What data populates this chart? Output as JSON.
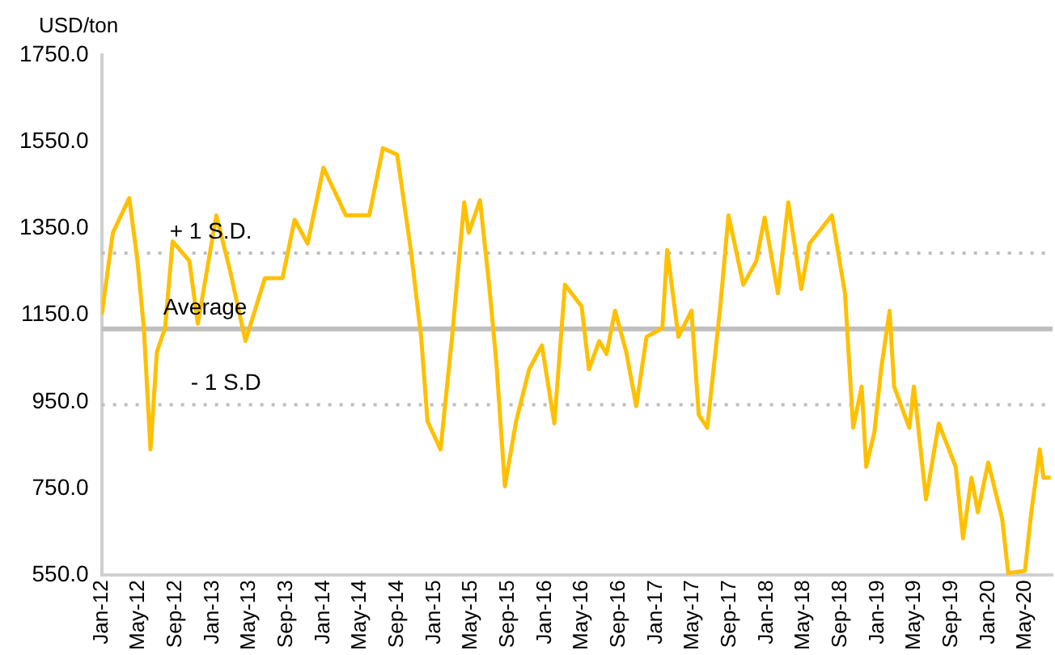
{
  "chart_data": {
    "type": "line",
    "ylabel": "USD/ton",
    "x": [
      "2012-01-01",
      "2012-02-07",
      "2012-04-01",
      "2012-04-28",
      "2012-05-19",
      "2012-06-10",
      "2012-07-01",
      "2012-07-28",
      "2012-08-22",
      "2012-10-16",
      "2012-11-13",
      "2013-01-13",
      "2013-02-28",
      "2013-04-19",
      "2013-06-22",
      "2013-08-19",
      "2013-09-28",
      "2013-11-10",
      "2014-01-01",
      "2014-03-16",
      "2014-06-01",
      "2014-07-16",
      "2014-09-01",
      "2014-10-16",
      "2014-11-19",
      "2014-12-10",
      "2015-01-22",
      "2015-03-01",
      "2015-04-10",
      "2015-04-25",
      "2015-06-01",
      "2015-07-01",
      "2015-07-25",
      "2015-08-22",
      "2015-09-28",
      "2015-11-10",
      "2015-12-22",
      "2016-02-01",
      "2016-03-07",
      "2016-05-01",
      "2016-05-25",
      "2016-06-28",
      "2016-07-22",
      "2016-08-19",
      "2016-09-25",
      "2016-10-28",
      "2016-12-01",
      "2017-01-22",
      "2017-02-07",
      "2017-03-16",
      "2017-04-28",
      "2017-05-22",
      "2017-06-19",
      "2017-08-01",
      "2017-08-28",
      "2017-10-16",
      "2017-11-28",
      "2017-12-25",
      "2018-02-07",
      "2018-03-13",
      "2018-04-25",
      "2018-05-22",
      "2018-08-04",
      "2018-09-16",
      "2018-10-13",
      "2018-11-10",
      "2018-11-25",
      "2018-12-22",
      "2019-01-13",
      "2019-02-10",
      "2019-02-25",
      "2019-04-16",
      "2019-05-01",
      "2019-06-10",
      "2019-07-22",
      "2019-09-16",
      "2019-10-10",
      "2019-11-07",
      "2019-11-28",
      "2020-01-01",
      "2020-02-16",
      "2020-03-07",
      "2020-05-01",
      "2020-05-22",
      "2020-06-19",
      "2020-07-01",
      "2020-07-25"
    ],
    "series": [
      {
        "color": "#ffc000",
        "values": [
          1150,
          1340,
          1420,
          1275,
          1120,
          840,
          1065,
          1120,
          1320,
          1275,
          1130,
          1380,
          1250,
          1090,
          1235,
          1235,
          1370,
          1315,
          1490,
          1380,
          1380,
          1535,
          1520,
          1300,
          1100,
          905,
          840,
          1100,
          1410,
          1340,
          1415,
          1220,
          1040,
          755,
          905,
          1025,
          1080,
          900,
          1220,
          1170,
          1025,
          1090,
          1060,
          1160,
          1065,
          940,
          1100,
          1120,
          1300,
          1100,
          1160,
          920,
          890,
          1170,
          1380,
          1220,
          1275,
          1375,
          1200,
          1410,
          1210,
          1315,
          1380,
          1200,
          890,
          985,
          800,
          880,
          1025,
          1160,
          985,
          890,
          985,
          725,
          900,
          800,
          635,
          775,
          695,
          810,
          680,
          555,
          560,
          695,
          840,
          775,
          775
        ]
      }
    ],
    "xlim": [
      "2012-01-01",
      "2020-07-31"
    ],
    "xticks": [
      {
        "value": "2012-01",
        "label": "Jan-12"
      },
      {
        "value": "2012-05",
        "label": "May-12"
      },
      {
        "value": "2012-09",
        "label": "Sep-12"
      },
      {
        "value": "2013-01",
        "label": "Jan-13"
      },
      {
        "value": "2013-05",
        "label": "May-13"
      },
      {
        "value": "2013-09",
        "label": "Sep-13"
      },
      {
        "value": "2014-01",
        "label": "Jan-14"
      },
      {
        "value": "2014-05",
        "label": "May-14"
      },
      {
        "value": "2014-09",
        "label": "Sep-14"
      },
      {
        "value": "2015-01",
        "label": "Jan-15"
      },
      {
        "value": "2015-05",
        "label": "May-15"
      },
      {
        "value": "2015-09",
        "label": "Sep-15"
      },
      {
        "value": "2016-01",
        "label": "Jan-16"
      },
      {
        "value": "2016-05",
        "label": "May-16"
      },
      {
        "value": "2016-09",
        "label": "Sep-16"
      },
      {
        "value": "2017-01",
        "label": "Jan-17"
      },
      {
        "value": "2017-05",
        "label": "May-17"
      },
      {
        "value": "2017-09",
        "label": "Sep-17"
      },
      {
        "value": "2018-01",
        "label": "Jan-18"
      },
      {
        "value": "2018-05",
        "label": "May-18"
      },
      {
        "value": "2018-09",
        "label": "Sep-18"
      },
      {
        "value": "2019-01",
        "label": "Jan-19"
      },
      {
        "value": "2019-05",
        "label": "May-19"
      },
      {
        "value": "2019-09",
        "label": "Sep-19"
      },
      {
        "value": "2020-01",
        "label": "Jan-20"
      },
      {
        "value": "2020-05",
        "label": "May-20"
      }
    ],
    "ylim": [
      550,
      1750
    ],
    "yticks": [
      {
        "value": 550,
        "label": "550.0"
      },
      {
        "value": 750,
        "label": "750.0"
      },
      {
        "value": 950,
        "label": "950.0"
      },
      {
        "value": 1150,
        "label": "1150.0"
      },
      {
        "value": 1350,
        "label": "1350.0"
      },
      {
        "value": 1550,
        "label": "1550.0"
      },
      {
        "value": 1750,
        "label": "1750.0"
      }
    ],
    "ref_lines": [
      {
        "axis": "y",
        "value": 1293,
        "label": "+ 1 S.D.",
        "color": "#bfbfbf",
        "line_style": "dotted"
      },
      {
        "axis": "y",
        "value": 1118,
        "label": "Average",
        "color": "#bfbfbf",
        "line_style": "solid"
      },
      {
        "axis": "y",
        "value": 943,
        "label": "- 1 S.D",
        "color": "#bfbfbf",
        "line_style": "dotted"
      }
    ],
    "grid": false,
    "legend": false,
    "marker": "none",
    "line_style": "solid"
  }
}
